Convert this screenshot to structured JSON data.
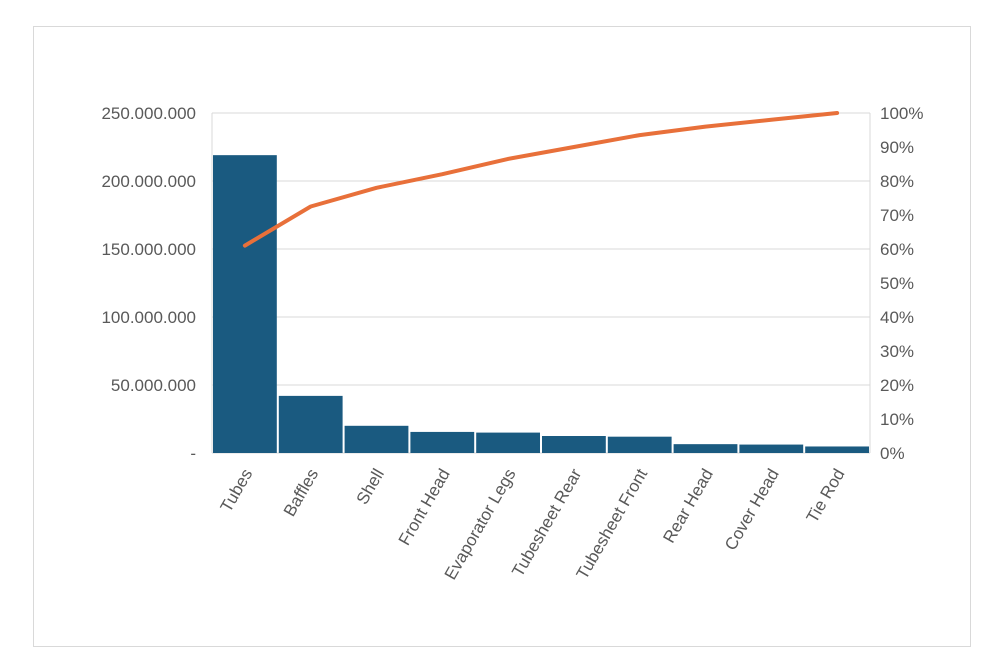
{
  "chart_data": {
    "type": "bar",
    "categories": [
      "Tubes",
      "Baffles",
      "Shell",
      "Front Head",
      "Evaporator Legs",
      "Tubesheet Rear",
      "Tubesheet Front",
      "Rear Head",
      "Cover Head",
      "Tie Rod"
    ],
    "series": [
      {
        "type": "bar",
        "axis": "left",
        "values": [
          219000000,
          42000000,
          20000000,
          15500000,
          15000000,
          12500000,
          12000000,
          6500000,
          6200000,
          4800000
        ]
      },
      {
        "type": "line",
        "axis": "right",
        "values": [
          0.61,
          0.725,
          0.78,
          0.82,
          0.865,
          0.9,
          0.935,
          0.96,
          0.98,
          1.0
        ]
      }
    ],
    "ylim": [
      0,
      250000000
    ],
    "y_ticks": [
      0,
      50000000,
      100000000,
      150000000,
      200000000,
      250000000
    ],
    "y_tick_labels": [
      "-",
      "50.000.000",
      "100.000.000",
      "150.000.000",
      "200.000.000",
      "250.000.000"
    ],
    "y2lim": [
      0,
      1
    ],
    "y2_ticks": [
      0,
      0.1,
      0.2,
      0.3,
      0.4,
      0.5,
      0.6,
      0.7,
      0.8,
      0.9,
      1.0
    ],
    "y2_tick_labels": [
      "0%",
      "10%",
      "20%",
      "30%",
      "40%",
      "50%",
      "60%",
      "70%",
      "80%",
      "90%",
      "100%"
    ],
    "grid": true,
    "legend": "none",
    "colors": {
      "bar": "#1a5a80",
      "line": "#e8703a",
      "grid": "#d9d9d9",
      "text": "#595959"
    }
  }
}
